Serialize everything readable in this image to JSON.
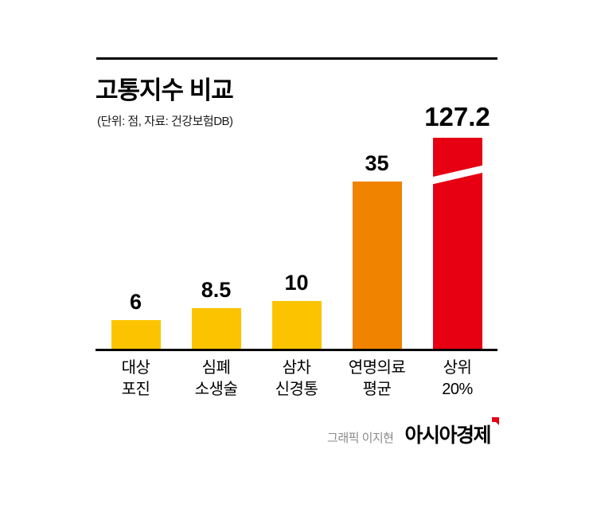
{
  "chart": {
    "title": "고통지수 비교",
    "subtitle": "(단위: 점, 자료: 건강보험DB)"
  },
  "chart_data": {
    "type": "bar",
    "title": "고통지수 비교",
    "subtitle": "(단위: 점, 자료: 건강보험DB)",
    "unit": "점",
    "source": "건강보험DB",
    "categories": [
      "대상\n포진",
      "심폐\n소생술",
      "삼차\n신경통",
      "연명의료\n평균",
      "상위\n20%"
    ],
    "values": [
      6,
      8.5,
      10,
      35,
      127.2
    ],
    "value_labels": [
      "6",
      "8.5",
      "10",
      "35",
      "127.2"
    ],
    "bar_colors": [
      "#fcc400",
      "#fcc400",
      "#fcc400",
      "#f08300",
      "#e60012"
    ],
    "axis_break_bar_index": 4,
    "grid": false,
    "legend": false,
    "ylim": [
      0,
      45
    ]
  },
  "footer": {
    "credit": "그래픽 이지현",
    "brand": "아시아경제"
  },
  "colors": {
    "yellow": "#fcc400",
    "orange": "#f08300",
    "red": "#e60012",
    "axis": "#000000"
  }
}
